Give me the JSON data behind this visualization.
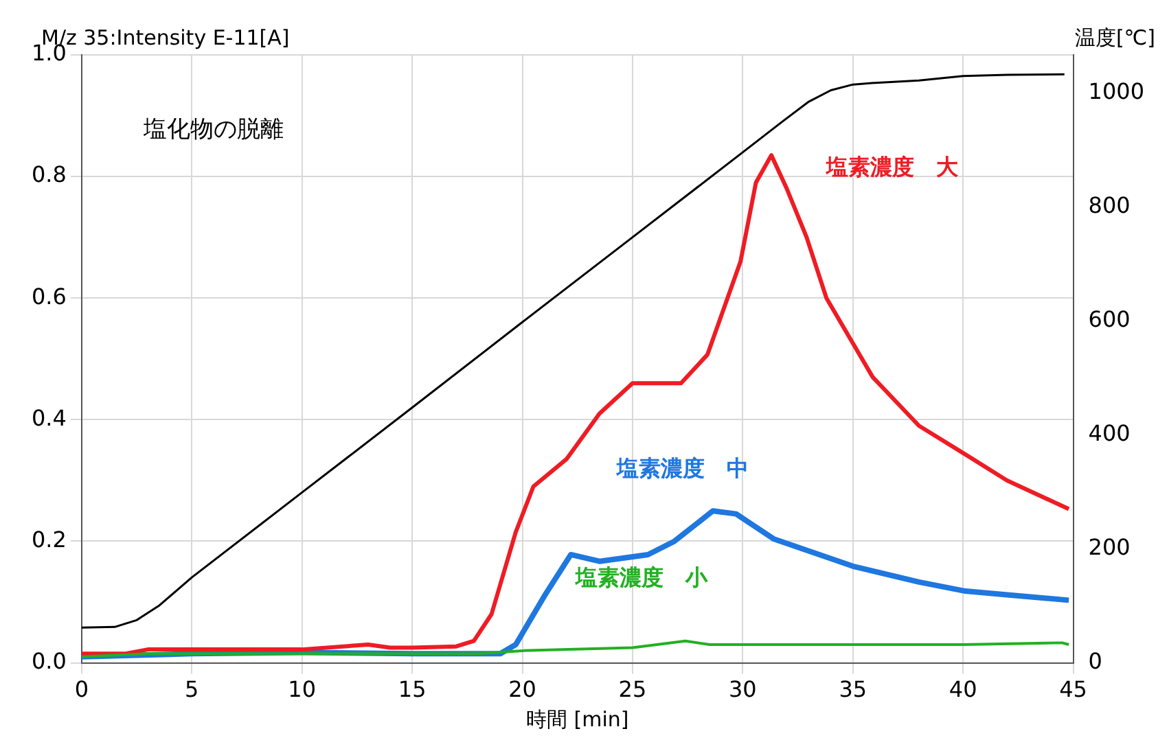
{
  "chart_data": {
    "type": "line",
    "ylabel": "M/z 35:Intensity E-11[A]",
    "y2label": "温度[℃]",
    "xlabel": "時間 [min]",
    "annotations": [
      "塩化物の脱離"
    ],
    "xlim": [
      0,
      45
    ],
    "xticks": [
      0,
      5,
      10,
      15,
      20,
      25,
      30,
      35,
      40,
      45
    ],
    "ylim": [
      0,
      1
    ],
    "yticks": [
      {
        "value": 0,
        "label": "0.0"
      },
      {
        "value": 0.2,
        "label": "0.2"
      },
      {
        "value": 0.4,
        "label": "0.4"
      },
      {
        "value": 0.6,
        "label": "0.6"
      },
      {
        "value": 0.8,
        "label": "0.8"
      },
      {
        "value": 1,
        "label": "1.0"
      }
    ],
    "y2lim": [
      0,
      1067
    ],
    "y2ticks": [
      0,
      200,
      400,
      600,
      800,
      1000
    ],
    "grid": true,
    "legend": false,
    "marker": "none",
    "line_style": "solid",
    "series": [
      {
        "color": "#000000",
        "axis": "y2",
        "x": [
          0,
          1.5,
          2.5,
          3.5,
          5,
          10,
          15,
          20,
          25,
          30,
          31.8,
          33,
          34,
          35,
          36,
          38,
          40,
          42,
          44.6
        ],
        "values": [
          62,
          63,
          75,
          100,
          150,
          299,
          448,
          598,
          747,
          896,
          950,
          985,
          1005,
          1015,
          1018,
          1022,
          1030,
          1032,
          1033
        ]
      },
      {
        "name": "塩素濃度　大",
        "color": "#ee1c24",
        "x": [
          0,
          2,
          3,
          10,
          13,
          14,
          15,
          17,
          17.8,
          18.6,
          19.7,
          20.5,
          22,
          23.5,
          25,
          26,
          27.2,
          28.4,
          29.9,
          30.6,
          31.3,
          32,
          32.9,
          33.8,
          35.9,
          38,
          40.1,
          42,
          44.8
        ],
        "values": [
          0.015,
          0.015,
          0.022,
          0.022,
          0.03,
          0.025,
          0.025,
          0.027,
          0.036,
          0.08,
          0.215,
          0.29,
          0.335,
          0.41,
          0.46,
          0.46,
          0.46,
          0.507,
          0.66,
          0.79,
          0.835,
          0.78,
          0.7,
          0.6,
          0.47,
          0.39,
          0.343,
          0.3,
          0.253
        ]
      },
      {
        "name": "塩素濃度　中",
        "color": "#1f77e0",
        "x": [
          0,
          5,
          10,
          15,
          19,
          19.7,
          21,
          22.2,
          23.5,
          25.7,
          26.9,
          28.65,
          29.7,
          31.4,
          35,
          38,
          40.1,
          42,
          44.8
        ],
        "values": [
          0.01,
          0.015,
          0.017,
          0.015,
          0.015,
          0.03,
          0.11,
          0.178,
          0.167,
          0.178,
          0.2,
          0.25,
          0.245,
          0.204,
          0.159,
          0.133,
          0.118,
          0.112,
          0.103
        ]
      },
      {
        "name": "塩素濃度　小",
        "color": "#22b022",
        "x": [
          0,
          3,
          10,
          18,
          20,
          25,
          27.4,
          28.5,
          30,
          35,
          40,
          44.5,
          44.8
        ],
        "values": [
          0.01,
          0.015,
          0.015,
          0.015,
          0.02,
          0.025,
          0.036,
          0.03,
          0.03,
          0.03,
          0.03,
          0.033,
          0.03
        ]
      }
    ]
  }
}
